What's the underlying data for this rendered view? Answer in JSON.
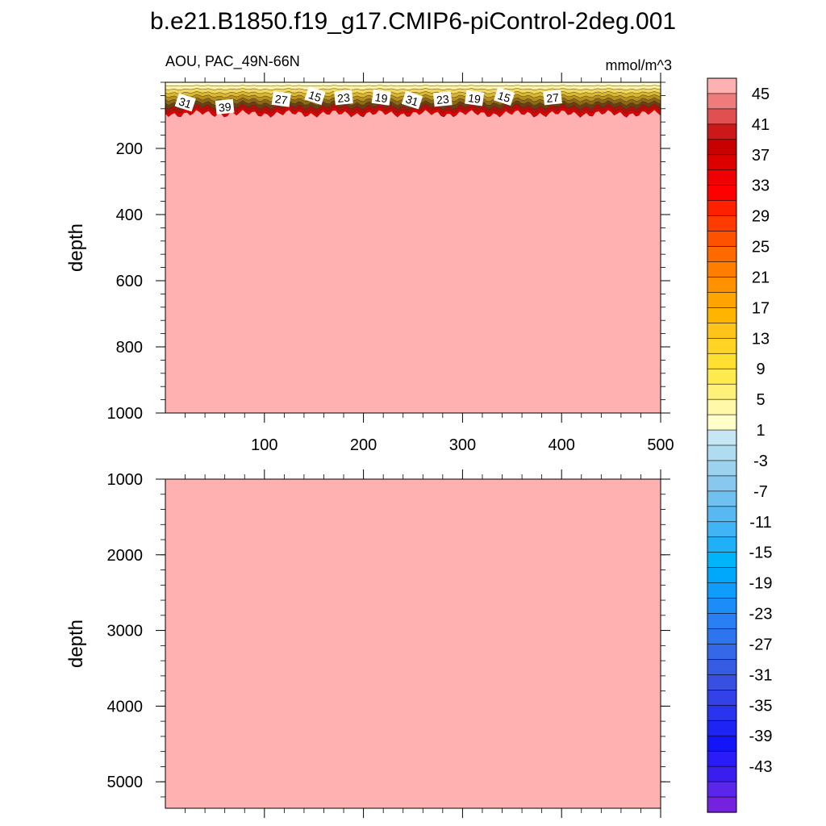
{
  "figure": {
    "title": "b.e21.B1850.f19_g17.CMIP6-piControl-2deg.001",
    "subtitle_left": "AOU, PAC_49N-66N",
    "subtitle_right": "mmol/m^3"
  },
  "chart_data": [
    {
      "type": "heatmap",
      "panel": "upper",
      "ylabel": "depth",
      "xlim": [
        0,
        500
      ],
      "ylim": [
        1000,
        0
      ],
      "x_ticks": [
        "100",
        "200",
        "300",
        "400",
        "500"
      ],
      "y_ticks": [
        "200",
        "400",
        "600",
        "800",
        "1000"
      ],
      "x_tick_values": [
        100,
        200,
        300,
        400,
        500
      ],
      "y_tick_values": [
        200,
        400,
        600,
        800,
        1000
      ],
      "background_color": "#ffb0b0",
      "surface_layer": {
        "depth_range": [
          0,
          95
        ],
        "colors": [
          "#ffffcc",
          "#fff2a0",
          "#f0d860",
          "#d8b830",
          "#b89020",
          "#8a6a18",
          "#6a4010",
          "#b01010",
          "#e00000"
        ]
      },
      "contour_labels": [
        {
          "x": 20,
          "y": 62,
          "text": "31"
        },
        {
          "x": 60,
          "y": 75,
          "text": "39"
        },
        {
          "x": 117,
          "y": 52,
          "text": "27"
        },
        {
          "x": 151,
          "y": 42,
          "text": "15"
        },
        {
          "x": 180,
          "y": 47,
          "text": "23"
        },
        {
          "x": 218,
          "y": 47,
          "text": "19"
        },
        {
          "x": 249,
          "y": 55,
          "text": "31"
        },
        {
          "x": 280,
          "y": 52,
          "text": "23"
        },
        {
          "x": 312,
          "y": 49,
          "text": "19"
        },
        {
          "x": 342,
          "y": 44,
          "text": "15"
        },
        {
          "x": 391,
          "y": 47,
          "text": "27"
        }
      ]
    },
    {
      "type": "heatmap",
      "panel": "lower",
      "ylabel": "depth",
      "xlim": [
        0,
        500
      ],
      "ylim": [
        5350,
        1000
      ],
      "y_ticks": [
        "1000",
        "2000",
        "3000",
        "4000",
        "5000"
      ],
      "y_tick_values": [
        1000,
        2000,
        3000,
        4000,
        5000
      ],
      "x_tick_values": [
        100,
        200,
        300,
        400,
        500
      ],
      "background_color": "#ffb0b0"
    },
    {
      "type": "colorbar",
      "labels": [
        "45",
        "41",
        "37",
        "33",
        "29",
        "25",
        "21",
        "17",
        "13",
        "9",
        "5",
        "1",
        "-3",
        "-7",
        "-11",
        "-15",
        "-19",
        "-23",
        "-27",
        "-31",
        "-35",
        "-39",
        "-43"
      ],
      "colors": [
        "#ffb0b0",
        "#ee7c7c",
        "#e05050",
        "#cc1818",
        "#c80000",
        "#dc0000",
        "#f00000",
        "#ff0000",
        "#ff2000",
        "#ff3c00",
        "#ff5200",
        "#ff6a00",
        "#ff7e00",
        "#ff9000",
        "#ffa400",
        "#ffb400",
        "#ffc418",
        "#ffd424",
        "#ffe030",
        "#ffea50",
        "#fff07a",
        "#fff8a8",
        "#ffffcc",
        "#c6e6f4",
        "#b0dcf0",
        "#9cd2ee",
        "#88c8ee",
        "#70c0f0",
        "#58b8f2",
        "#40b4f4",
        "#20b0f8",
        "#00b4fa",
        "#00a8fc",
        "#109cfc",
        "#1c8cf8",
        "#2880f4",
        "#2e74ee",
        "#3468e8",
        "#365ce4",
        "#3850e2",
        "#3242e8",
        "#2a34ee",
        "#1e24f4",
        "#1414fa",
        "#2a1cf8",
        "#3a1ef0",
        "#5a26ea",
        "#7422e0"
      ]
    }
  ]
}
